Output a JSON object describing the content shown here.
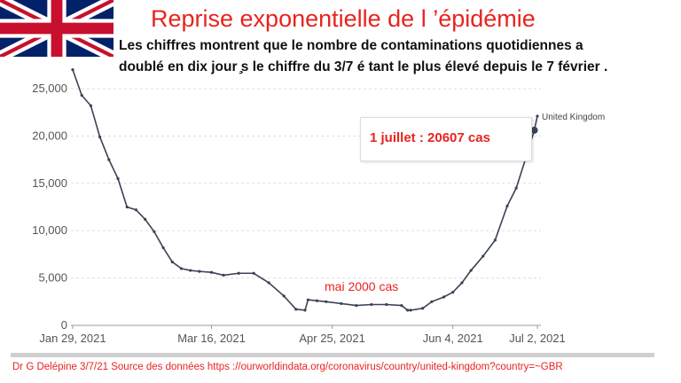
{
  "title": "Reprise exponentielle de l ’épidémie",
  "subtitle": {
    "line1": "Les chiffres montrent que le nombre de contaminations quotidiennes a",
    "line2": "doublé en dix jour ̧s le chiffre du 3/7 é tant le plus élevé depuis le 7 février ."
  },
  "flag_icon": "united-kingdom-flag",
  "callout": "1 juillet : 20607 cas",
  "annotation": "mai 2000 cas",
  "footer": "Dr G Delépine 3/7/21 Source des données https ://ourworldindata.org/coronavirus/country/united-kingdom?country=~GBR",
  "colors": {
    "title": "#e8231f",
    "line": "#3a4255",
    "grid": "#dddddd",
    "axis_text": "#555555"
  },
  "chart_data": {
    "type": "line",
    "series": [
      {
        "name": "United Kingdom",
        "x": [
          "2021-01-29",
          "2021-02-01",
          "2021-02-04",
          "2021-02-07",
          "2021-02-10",
          "2021-02-13",
          "2021-02-16",
          "2021-02-19",
          "2021-02-22",
          "2021-02-25",
          "2021-02-28",
          "2021-03-03",
          "2021-03-06",
          "2021-03-09",
          "2021-03-12",
          "2021-03-16",
          "2021-03-20",
          "2021-03-25",
          "2021-03-30",
          "2021-04-04",
          "2021-04-09",
          "2021-04-13",
          "2021-04-16",
          "2021-04-17",
          "2021-04-20",
          "2021-04-23",
          "2021-04-28",
          "2021-05-03",
          "2021-05-08",
          "2021-05-13",
          "2021-05-18",
          "2021-05-20",
          "2021-05-21",
          "2021-05-25",
          "2021-05-28",
          "2021-06-01",
          "2021-06-04",
          "2021-06-07",
          "2021-06-10",
          "2021-06-14",
          "2021-06-18",
          "2021-06-22",
          "2021-06-25",
          "2021-06-28",
          "2021-07-01",
          "2021-07-02"
        ],
        "y": [
          27000,
          24300,
          23200,
          19900,
          17500,
          15500,
          12500,
          12200,
          11200,
          9900,
          8200,
          6700,
          6000,
          5800,
          5700,
          5600,
          5300,
          5500,
          5500,
          4500,
          3100,
          1700,
          1600,
          2700,
          2600,
          2500,
          2300,
          2100,
          2200,
          2200,
          2100,
          1600,
          1600,
          1800,
          2500,
          3000,
          3500,
          4500,
          5800,
          7300,
          9000,
          12600,
          14500,
          17500,
          20607,
          22100
        ]
      }
    ],
    "legend": "end-of-line",
    "xlabel": "",
    "ylabel": "",
    "xticks": [
      "Jan 29, 2021",
      "Mar 16, 2021",
      "Apr 25, 2021",
      "Jun 4, 2021",
      "Jul 2, 2021"
    ],
    "yticks": [
      "0",
      "5,000",
      "10,000",
      "15,000",
      "20,000",
      "25,000"
    ],
    "ylim": [
      0,
      27000
    ],
    "xlim": [
      "2021-01-29",
      "2021-07-02"
    ],
    "grid": "horizontal"
  }
}
